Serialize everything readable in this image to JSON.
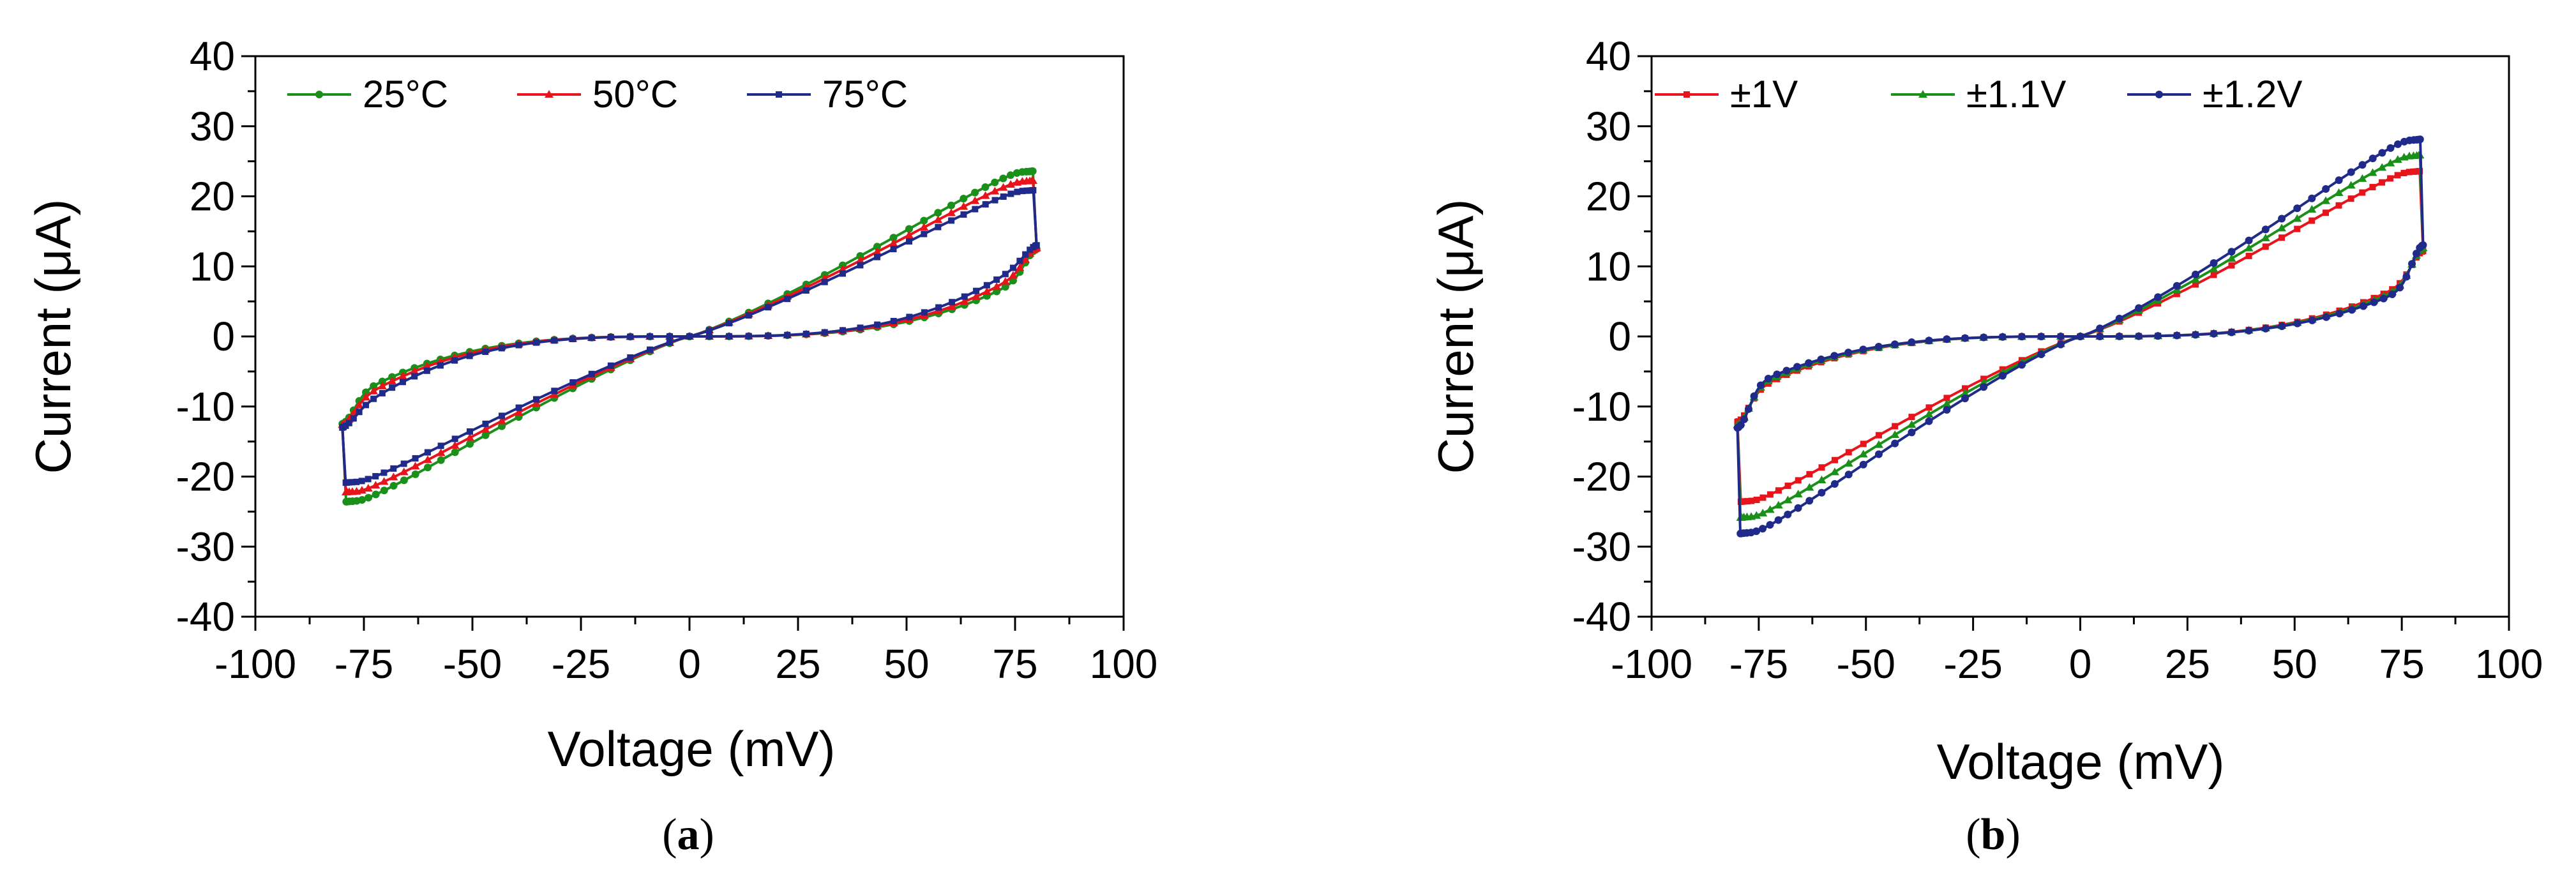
{
  "chart_data": [
    {
      "type": "line",
      "caption": "(a)",
      "caption_letter": "a",
      "xlabel": "Voltage (mV)",
      "ylabel": "Current (μA)",
      "xlim": [
        -100,
        100
      ],
      "ylim": [
        -40,
        40
      ],
      "xticks": [
        -100,
        -75,
        -50,
        -25,
        0,
        25,
        50,
        75,
        100
      ],
      "yticks": [
        -40,
        -30,
        -20,
        -10,
        0,
        10,
        20,
        30,
        40
      ],
      "grid": false,
      "legend_position": "top-left",
      "series": [
        {
          "name": "25°C",
          "color": "#1a8f1a",
          "marker": "circle",
          "vmax": 80,
          "ipeak": 26,
          "lobe_width": 9,
          "return_current_at_75": 9.5,
          "x": [
            0,
            10,
            20,
            30,
            40,
            50,
            60,
            70,
            75,
            80,
            75,
            70,
            60,
            50,
            40,
            30,
            20,
            10,
            0,
            -10,
            -20,
            -30,
            -40,
            -50,
            -60,
            -70,
            -75,
            -80,
            -75,
            -70,
            -60,
            -50,
            -40,
            -30,
            -20,
            -10,
            0
          ],
          "y": [
            0,
            4.8,
            9.5,
            13.8,
            17.6,
            21.2,
            24.2,
            26.2,
            26.0,
            18.0,
            9.5,
            6.0,
            3.6,
            2.6,
            2.0,
            1.5,
            1.0,
            0.5,
            0,
            -0.5,
            -1.0,
            -1.5,
            -2.0,
            -2.6,
            -3.6,
            -6.0,
            -9.5,
            -18.0,
            -26.0,
            -26.2,
            -24.2,
            -21.2,
            -17.6,
            -13.8,
            -9.5,
            -4.8,
            0
          ]
        },
        {
          "name": "50°C",
          "color": "#e8141c",
          "marker": "triangle",
          "vmax": 80,
          "ipeak": 24.5,
          "lobe_width": 8.5,
          "return_current_at_75": 10.5,
          "x": [
            0,
            10,
            20,
            30,
            40,
            50,
            60,
            70,
            75,
            80,
            75,
            70,
            60,
            50,
            40,
            30,
            20,
            10,
            0,
            -10,
            -20,
            -30,
            -40,
            -50,
            -60,
            -70,
            -75,
            -80,
            -75,
            -70,
            -60,
            -50,
            -40,
            -30,
            -20,
            -10,
            0
          ],
          "y": [
            0,
            4.5,
            9.0,
            13.0,
            16.6,
            19.9,
            22.8,
            24.5,
            24.2,
            19.0,
            10.5,
            6.8,
            4.0,
            2.9,
            2.2,
            1.6,
            1.1,
            0.5,
            0,
            -0.5,
            -1.1,
            -1.6,
            -2.2,
            -2.9,
            -4.0,
            -6.8,
            -10.5,
            -19.0,
            -24.2,
            -24.5,
            -22.8,
            -19.9,
            -16.6,
            -13.0,
            -9.0,
            -4.5,
            0
          ]
        },
        {
          "name": "75°C",
          "color": "#1f2a8a",
          "marker": "square",
          "vmax": 80,
          "ipeak": 23,
          "lobe_width": 8,
          "return_current_at_75": 12,
          "x": [
            0,
            10,
            20,
            30,
            40,
            50,
            60,
            70,
            75,
            80,
            75,
            70,
            60,
            50,
            40,
            30,
            20,
            10,
            0,
            -10,
            -20,
            -30,
            -40,
            -50,
            -60,
            -70,
            -75,
            -80,
            -75,
            -70,
            -60,
            -50,
            -40,
            -30,
            -20,
            -10,
            0
          ],
          "y": [
            0,
            4.2,
            8.4,
            12.2,
            15.6,
            18.7,
            21.4,
            23.0,
            23.0,
            20.0,
            12.0,
            7.8,
            4.6,
            3.3,
            2.5,
            1.8,
            1.2,
            0.6,
            0,
            -0.6,
            -1.2,
            -1.8,
            -2.5,
            -3.3,
            -4.6,
            -7.8,
            -12.0,
            -20.0,
            -23.0,
            -23.0,
            -21.4,
            -18.7,
            -15.6,
            -12.2,
            -8.4,
            -4.2,
            0
          ]
        }
      ]
    },
    {
      "type": "line",
      "caption": "(b)",
      "caption_letter": "b",
      "xlabel": "Voltage (mV)",
      "ylabel": "Current (μA)",
      "xlim": [
        -100,
        100
      ],
      "ylim": [
        -40,
        40
      ],
      "xticks": [
        -100,
        -75,
        -50,
        -25,
        0,
        25,
        50,
        75,
        100
      ],
      "yticks": [
        -40,
        -30,
        -20,
        -10,
        0,
        10,
        20,
        30,
        40
      ],
      "grid": false,
      "legend_position": "top-left",
      "series": [
        {
          "name": "±1V",
          "color": "#e8141c",
          "marker": "square",
          "vmax": 80,
          "ipeak": 26,
          "lobe_width": 8,
          "return_current_at_75": 9,
          "x": [
            0,
            10,
            20,
            30,
            40,
            50,
            60,
            70,
            75,
            80,
            75,
            70,
            60,
            50,
            40,
            30,
            20,
            10,
            0,
            -10,
            -20,
            -30,
            -40,
            -50,
            -60,
            -70,
            -75,
            -80,
            -75,
            -70,
            -60,
            -50,
            -40,
            -30,
            -20,
            -10,
            0
          ],
          "y": [
            0,
            4.4,
            8.8,
            12.9,
            16.7,
            20.4,
            23.5,
            26.0,
            25.5,
            17.0,
            9.0,
            5.5,
            3.4,
            2.5,
            1.9,
            1.4,
            0.9,
            0.4,
            0,
            -0.4,
            -0.9,
            -1.4,
            -1.9,
            -2.5,
            -3.4,
            -5.5,
            -9.0,
            -17.0,
            -25.5,
            -26.0,
            -23.5,
            -20.4,
            -16.7,
            -12.9,
            -8.8,
            -4.4,
            0
          ]
        },
        {
          "name": "±1.1V",
          "color": "#1a8f1a",
          "marker": "triangle",
          "vmax": 80,
          "ipeak": 28.5,
          "lobe_width": 7.5,
          "return_current_at_75": 8.5,
          "x": [
            0,
            10,
            20,
            30,
            40,
            50,
            60,
            70,
            75,
            80,
            75,
            70,
            60,
            50,
            40,
            30,
            20,
            10,
            0,
            -10,
            -20,
            -30,
            -40,
            -50,
            -60,
            -70,
            -75,
            -80,
            -75,
            -70,
            -60,
            -50,
            -40,
            -30,
            -20,
            -10,
            0
          ],
          "y": [
            0,
            4.6,
            9.3,
            13.7,
            18.0,
            22.0,
            25.7,
            28.5,
            28.0,
            17.5,
            8.5,
            5.3,
            3.3,
            2.4,
            1.8,
            1.3,
            0.9,
            0.4,
            0,
            -0.4,
            -0.9,
            -1.3,
            -1.8,
            -2.4,
            -3.3,
            -5.3,
            -8.5,
            -17.5,
            -28.0,
            -28.5,
            -25.7,
            -22.0,
            -18.0,
            -13.7,
            -9.3,
            -4.6,
            0
          ]
        },
        {
          "name": "±1.2V",
          "color": "#1f2a8a",
          "marker": "circle",
          "vmax": 80,
          "ipeak": 31,
          "lobe_width": 7,
          "return_current_at_75": 8,
          "x": [
            0,
            10,
            20,
            30,
            40,
            50,
            60,
            70,
            75,
            80,
            75,
            70,
            60,
            50,
            40,
            30,
            20,
            10,
            0,
            -10,
            -20,
            -30,
            -40,
            -50,
            -60,
            -70,
            -75,
            -80,
            -75,
            -70,
            -60,
            -50,
            -40,
            -30,
            -20,
            -10,
            0
          ],
          "y": [
            0,
            4.8,
            9.8,
            14.6,
            19.3,
            23.8,
            27.9,
            31.0,
            30.5,
            18.0,
            8.0,
            5.0,
            3.2,
            2.3,
            1.7,
            1.2,
            0.8,
            0.4,
            0,
            -0.4,
            -0.8,
            -1.2,
            -1.7,
            -2.3,
            -3.2,
            -5.0,
            -8.0,
            -18.0,
            -30.5,
            -31.0,
            -27.9,
            -23.8,
            -19.3,
            -14.6,
            -9.8,
            -4.8,
            0
          ]
        }
      ]
    }
  ]
}
